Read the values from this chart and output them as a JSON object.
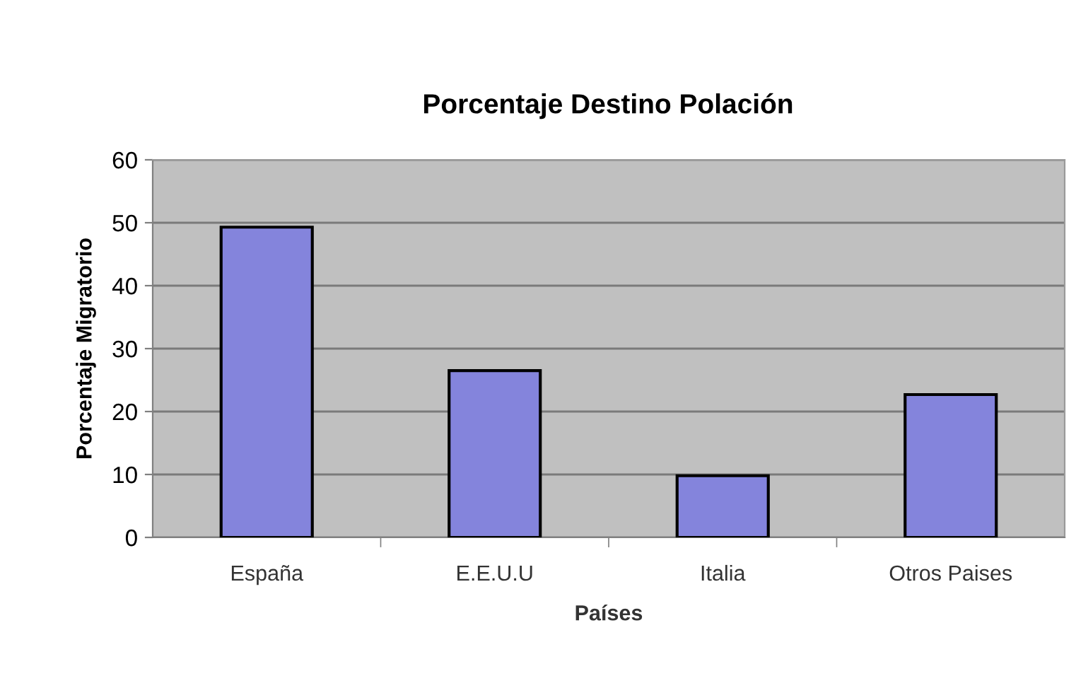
{
  "chart_data": {
    "type": "bar",
    "title": "Porcentaje Destino Polación",
    "xlabel": "Países",
    "ylabel": "Porcentaje Migratorio",
    "categories": [
      "España",
      "E.E.U.U",
      "Italia",
      "Otros Paises"
    ],
    "series": [
      {
        "color": "#8484dc",
        "values": [
          49.3,
          26.5,
          9.8,
          22.7
        ]
      }
    ],
    "ylim": [
      0,
      60
    ],
    "yticks": [
      0,
      10,
      20,
      30,
      40,
      50,
      60
    ],
    "grid": "y",
    "legend": false
  }
}
